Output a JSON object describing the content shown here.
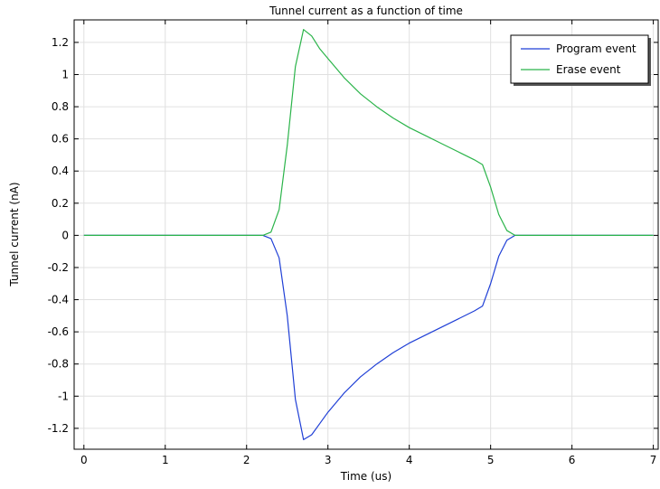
{
  "chart_data": {
    "type": "line",
    "title": "Tunnel current as a function of time",
    "xlabel": "Time (us)",
    "ylabel": "Tunnel current (nA)",
    "xlim": [
      -0.12,
      7.06
    ],
    "ylim": [
      -1.33,
      1.34
    ],
    "xticks": [
      0,
      1,
      2,
      3,
      4,
      5,
      6,
      7
    ],
    "xtick_labels": [
      "0",
      "1",
      "2",
      "3",
      "4",
      "5",
      "6",
      "7"
    ],
    "yticks": [
      -1.2,
      -1,
      -0.8,
      -0.6,
      -0.4,
      -0.2,
      0,
      0.2,
      0.4,
      0.6,
      0.8,
      1,
      1.2
    ],
    "ytick_labels": [
      "-1.2",
      "-1",
      "-0.8",
      "-0.6",
      "-0.4",
      "-0.2",
      "0",
      "0.2",
      "0.4",
      "0.6",
      "0.8",
      "1",
      "1.2"
    ],
    "grid": true,
    "legend_position": "top-right",
    "series": [
      {
        "name": "Program event",
        "color": "#1f3fd6",
        "x": [
          0,
          2.2,
          2.3,
          2.4,
          2.5,
          2.6,
          2.7,
          2.8,
          2.9,
          3.0,
          3.2,
          3.4,
          3.6,
          3.8,
          4.0,
          4.2,
          4.4,
          4.6,
          4.8,
          4.9,
          5.0,
          5.1,
          5.2,
          5.3,
          5.4,
          7.0
        ],
        "y": [
          0,
          0,
          -0.02,
          -0.14,
          -0.5,
          -1.02,
          -1.27,
          -1.24,
          -1.17,
          -1.1,
          -0.98,
          -0.88,
          -0.8,
          -0.73,
          -0.67,
          -0.62,
          -0.57,
          -0.52,
          -0.47,
          -0.44,
          -0.3,
          -0.13,
          -0.03,
          0,
          0,
          0
        ]
      },
      {
        "name": "Erase event",
        "color": "#2bb44a",
        "x": [
          0,
          2.2,
          2.3,
          2.4,
          2.5,
          2.6,
          2.7,
          2.8,
          2.9,
          3.0,
          3.2,
          3.4,
          3.6,
          3.8,
          4.0,
          4.2,
          4.4,
          4.6,
          4.8,
          4.9,
          5.0,
          5.1,
          5.2,
          5.3,
          5.4,
          7.0
        ],
        "y": [
          0,
          0,
          0.02,
          0.16,
          0.56,
          1.05,
          1.28,
          1.24,
          1.16,
          1.1,
          0.98,
          0.88,
          0.8,
          0.73,
          0.67,
          0.62,
          0.57,
          0.52,
          0.47,
          0.44,
          0.3,
          0.13,
          0.03,
          0,
          0,
          0
        ]
      }
    ]
  }
}
